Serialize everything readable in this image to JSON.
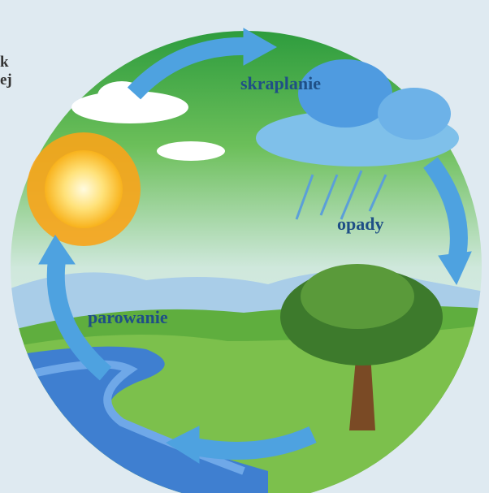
{
  "cropped_text": [
    "k",
    "ej"
  ],
  "labels": [
    "skraplanie",
    "opady",
    "parowanie"
  ]
}
